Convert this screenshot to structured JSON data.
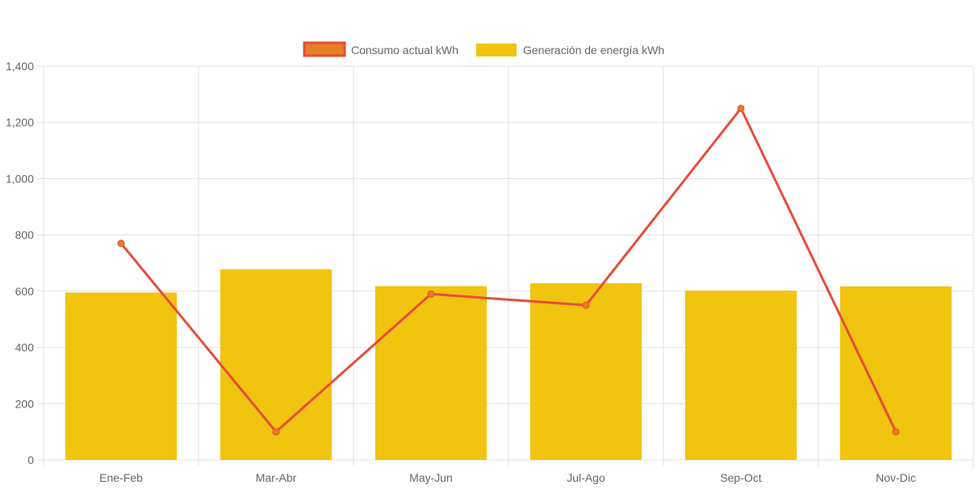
{
  "chart_data": {
    "type": "bar",
    "categories": [
      "Ene-Feb",
      "Mar-Abr",
      "May-Jun",
      "Jul-Ago",
      "Sep-Oct",
      "Nov-Dic"
    ],
    "series": [
      {
        "name": "Consumo actual kWh",
        "type": "line",
        "values": [
          770,
          100,
          590,
          550,
          1250,
          100
        ],
        "color": "#e74c3c",
        "point_fill": "#e67e22"
      },
      {
        "name": "Generación de energía kWh",
        "type": "bar",
        "values": [
          595,
          678,
          618,
          628,
          602,
          617
        ],
        "color": "#f1c40f"
      }
    ],
    "ylim": [
      0,
      1400
    ],
    "y_ticks": [
      "0",
      "200",
      "400",
      "600",
      "800",
      "1,000",
      "1,200",
      "1,400"
    ],
    "grid": true,
    "legend_position": "top",
    "colors": {
      "grid": "#e0e0e0",
      "axis_text": "#666666"
    }
  }
}
